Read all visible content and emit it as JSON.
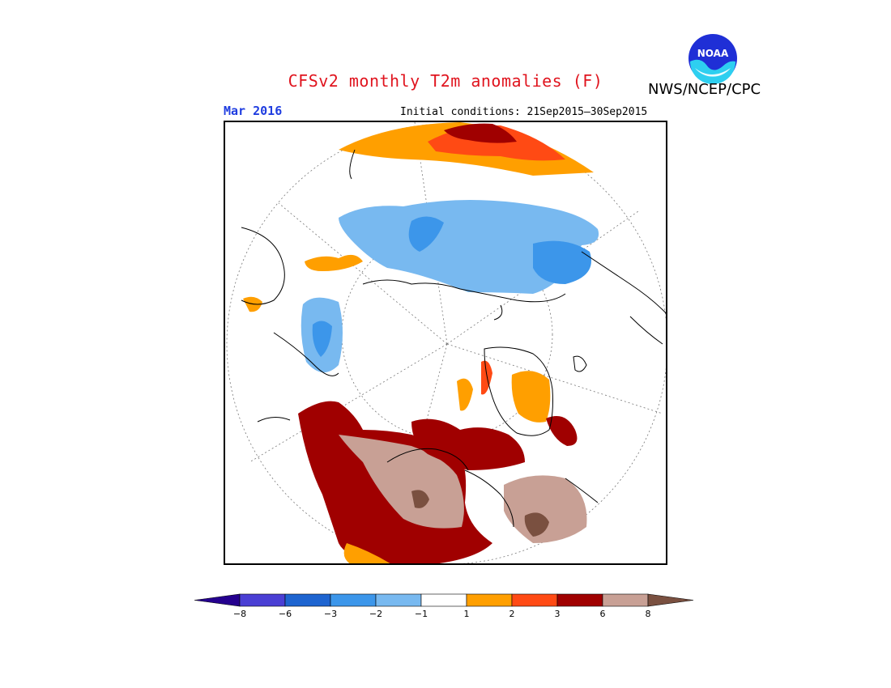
{
  "title": "CFSv2 monthly T2m anomalies (F)",
  "agency": "NWS/NCEP/CPC",
  "logo_text": "NOAA",
  "valid_month": "Mar 2016",
  "initial_conditions": "Initial conditions: 21Sep2015–30Sep2015",
  "legend": {
    "ticks": [
      "−8",
      "−6",
      "−3",
      "−2",
      "−1",
      "1",
      "2",
      "3",
      "6",
      "8"
    ],
    "colors": [
      "#25008f",
      "#4a3fd4",
      "#1e64d0",
      "#3c96ea",
      "#78b9f0",
      "#ffffff",
      "#ff9f00",
      "#ff4a14",
      "#a00000",
      "#c8a095",
      "#7a5040"
    ]
  }
}
